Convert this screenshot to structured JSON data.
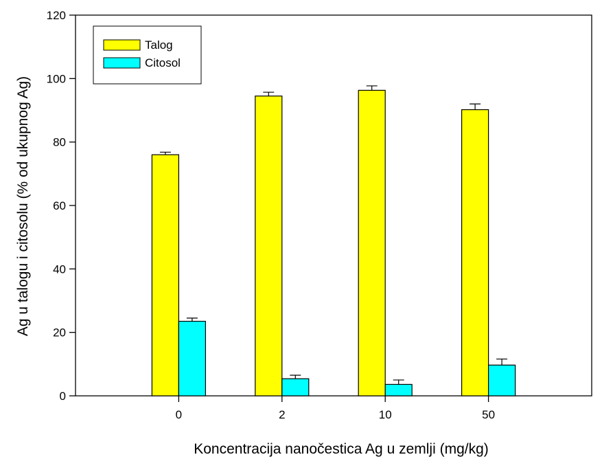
{
  "chart_data": {
    "type": "bar",
    "title": "",
    "xlabel": "Koncentracija nanočestica Ag u zemlji (mg/kg)",
    "ylabel": "Ag u talogu i citosolu (% od ukupnog Ag)",
    "categories": [
      "0",
      "2",
      "10",
      "50"
    ],
    "ylim": [
      0,
      120
    ],
    "yticks": [
      0,
      20,
      40,
      60,
      80,
      100,
      120
    ],
    "grid": false,
    "legend_position": "top-left",
    "series": [
      {
        "name": "Talog",
        "color": "#ffff00",
        "values": [
          76,
          94.5,
          96.3,
          90.2
        ],
        "errors": [
          0.8,
          1.2,
          1.4,
          1.8
        ]
      },
      {
        "name": "Citosol",
        "color": "#00ffff",
        "values": [
          23.5,
          5.4,
          3.6,
          9.7
        ],
        "errors": [
          1.0,
          1.1,
          1.4,
          1.9
        ]
      }
    ]
  }
}
